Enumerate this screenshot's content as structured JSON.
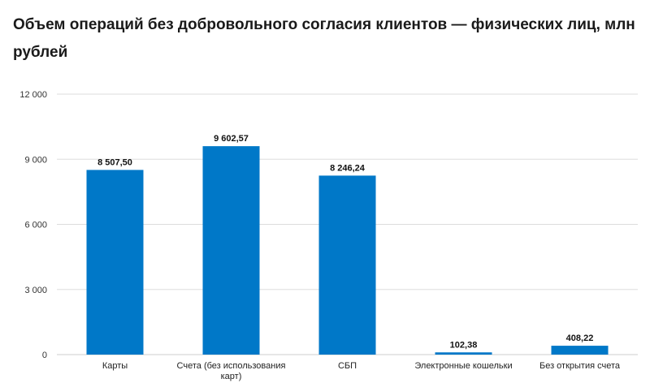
{
  "title": "Объем операций без добровольного согласия клиентов — физических лиц, млн рублей",
  "colors": {
    "bar": "#0078c8",
    "grid": "#dddddd",
    "axis": "#cccccc"
  },
  "chart_data": {
    "type": "bar",
    "title": "Объем операций без добровольного согласия клиентов — физических лиц, млн рублей",
    "categories": [
      [
        "Карты"
      ],
      [
        "Счета (без использования",
        "карт)"
      ],
      [
        "СБП"
      ],
      [
        "Электронные кошельки"
      ],
      [
        "Без открытия счета"
      ]
    ],
    "values": [
      8507.5,
      9602.57,
      8246.24,
      102.38,
      408.22
    ],
    "value_labels": [
      "8 507,50",
      "9 602,57",
      "8 246,24",
      "102,38",
      "408,22"
    ],
    "yticks": [
      0,
      3000,
      6000,
      9000,
      12000
    ],
    "ytick_labels": [
      "0",
      "3 000",
      "6 000",
      "9 000",
      "12 000"
    ],
    "ylim": [
      0,
      12000
    ],
    "grid": true,
    "legend": "none"
  }
}
